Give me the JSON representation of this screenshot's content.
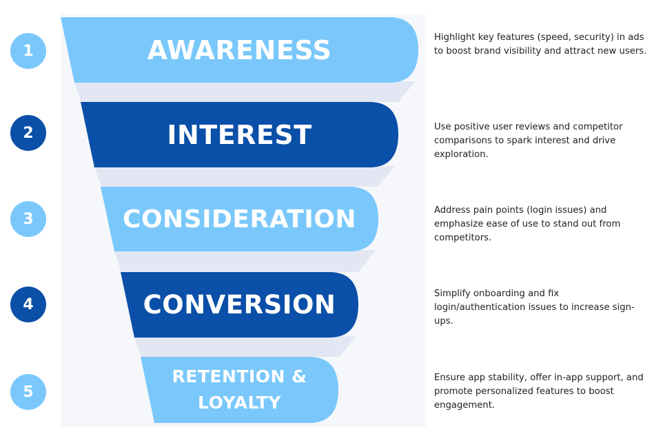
{
  "colors": {
    "light": "#7ac8fb",
    "dark": "#0a4fa8",
    "connector": "#e3e7f3",
    "backdrop": "#f6f7fb",
    "text_dark": "#1f1f1f"
  },
  "stages": [
    {
      "number": "1",
      "title": "AWARENESS",
      "description": "Highlight key features (speed, security) in ads to boost brand visibility and attract new users.",
      "tone": "light"
    },
    {
      "number": "2",
      "title": "INTEREST",
      "description": "Use positive user reviews and competitor comparisons to spark interest and drive exploration.",
      "tone": "dark"
    },
    {
      "number": "3",
      "title": "CONSIDERATION",
      "description": "Address pain points (login issues) and emphasize ease of use to stand out from competitors.",
      "tone": "light"
    },
    {
      "number": "4",
      "title": "CONVERSION",
      "description": "Simplify onboarding and fix login/authentication issues to increase sign-ups.",
      "tone": "dark"
    },
    {
      "number": "5",
      "title": "RETENTION & LOYALTY",
      "title_line1": "RETENTION &",
      "title_line2": "LOYALTY",
      "description": "Ensure app stability, offer in-app support, and promote personalized features to boost engagement.",
      "tone": "light"
    }
  ]
}
